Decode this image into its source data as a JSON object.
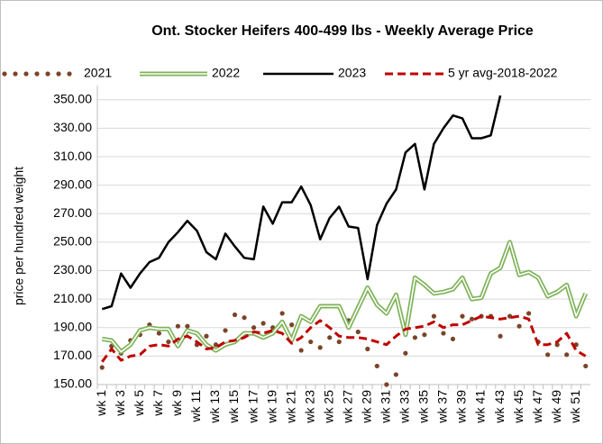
{
  "chart_data": {
    "type": "line",
    "title": "Ont. Stocker Heifers 400-499 lbs  - Weekly Average Price",
    "y_label": "price per hundred weight",
    "categories": [
      "wk 1",
      null,
      "wk 3",
      null,
      "wk 5",
      null,
      "wk 7",
      null,
      "wk 9",
      null,
      "wk 11",
      null,
      "wk 13",
      null,
      "wk 15",
      null,
      "wk 17",
      null,
      "wk 19",
      null,
      "wk 21",
      null,
      "wk 23",
      null,
      "wk 25",
      null,
      "wk 27",
      null,
      "wk 29",
      null,
      "wk 31",
      null,
      "wk 33",
      null,
      "wk 35",
      null,
      "wk 37",
      null,
      "wk 39",
      null,
      "wk 41",
      null,
      "wk 43",
      null,
      "wk 45",
      null,
      "wk 47",
      null,
      "wk 49",
      null,
      "wk 51",
      null
    ],
    "ylim": [
      150,
      360
    ],
    "yticks": [
      {
        "value": 150,
        "label": "150.00"
      },
      {
        "value": 170,
        "label": "170.00"
      },
      {
        "value": 190,
        "label": "190.00"
      },
      {
        "value": 210,
        "label": "210.00"
      },
      {
        "value": 230,
        "label": "230.00"
      },
      {
        "value": 250,
        "label": "250.00"
      },
      {
        "value": 270,
        "label": "270.00"
      },
      {
        "value": 290,
        "label": "290.00"
      },
      {
        "value": 310,
        "label": "310.00"
      },
      {
        "value": 330,
        "label": "330.00"
      },
      {
        "value": 350,
        "label": "350.00"
      }
    ],
    "grid": true,
    "legend": "top",
    "series": [
      {
        "name": "2021",
        "color": "#7a4427",
        "style": "dotted",
        "values": [
          162,
          177,
          172,
          181,
          185,
          192,
          186,
          180,
          191,
          191,
          178,
          184,
          178,
          188,
          199,
          197,
          190,
          193,
          190,
          200,
          192,
          174,
          180,
          176,
          183,
          180,
          195,
          187,
          175,
          163,
          150,
          157,
          172,
          183,
          185,
          198,
          186,
          182,
          198,
          196,
          198,
          198,
          184,
          198,
          191,
          200,
          180,
          171,
          178,
          171,
          178,
          163
        ]
      },
      {
        "name": "2022",
        "color": "#7fb35a",
        "style": "double",
        "values": [
          182,
          181,
          173,
          178,
          188,
          190,
          189,
          189,
          177,
          188,
          186,
          178,
          174,
          178,
          180,
          186,
          186,
          183,
          186,
          194,
          181,
          198,
          194,
          205,
          205,
          205,
          190,
          204,
          218,
          206,
          200,
          213,
          185,
          225,
          220,
          214,
          215,
          217,
          225,
          210,
          211,
          228,
          232,
          250,
          227,
          229,
          225,
          212,
          215,
          220,
          198,
          214
        ]
      },
      {
        "name": "2023",
        "color": "#000000",
        "style": "solid",
        "values": [
          203,
          205,
          228,
          218,
          228,
          236,
          239,
          250,
          257,
          265,
          258,
          243,
          238,
          256,
          247,
          239,
          238,
          275,
          263,
          278,
          278,
          289,
          276,
          252,
          267,
          275,
          261,
          260,
          224,
          262,
          277,
          287,
          313,
          319,
          287,
          319,
          330,
          339,
          337,
          323,
          323,
          325,
          353,
          null,
          null,
          null,
          null,
          null,
          null,
          null,
          null,
          null
        ]
      },
      {
        "name": "5 yr avg-2018-2022",
        "color": "#c00000",
        "style": "dashed",
        "values": [
          166,
          175,
          167,
          170,
          171,
          177,
          178,
          177,
          182,
          184,
          180,
          175,
          176,
          180,
          181,
          183,
          187,
          186,
          188,
          186,
          179,
          183,
          190,
          195,
          190,
          184,
          183,
          183,
          182,
          180,
          178,
          184,
          189,
          190,
          191,
          194,
          190,
          192,
          192,
          195,
          198,
          197,
          196,
          197,
          198,
          196,
          178,
          178,
          180,
          186,
          174,
          170
        ]
      }
    ]
  }
}
